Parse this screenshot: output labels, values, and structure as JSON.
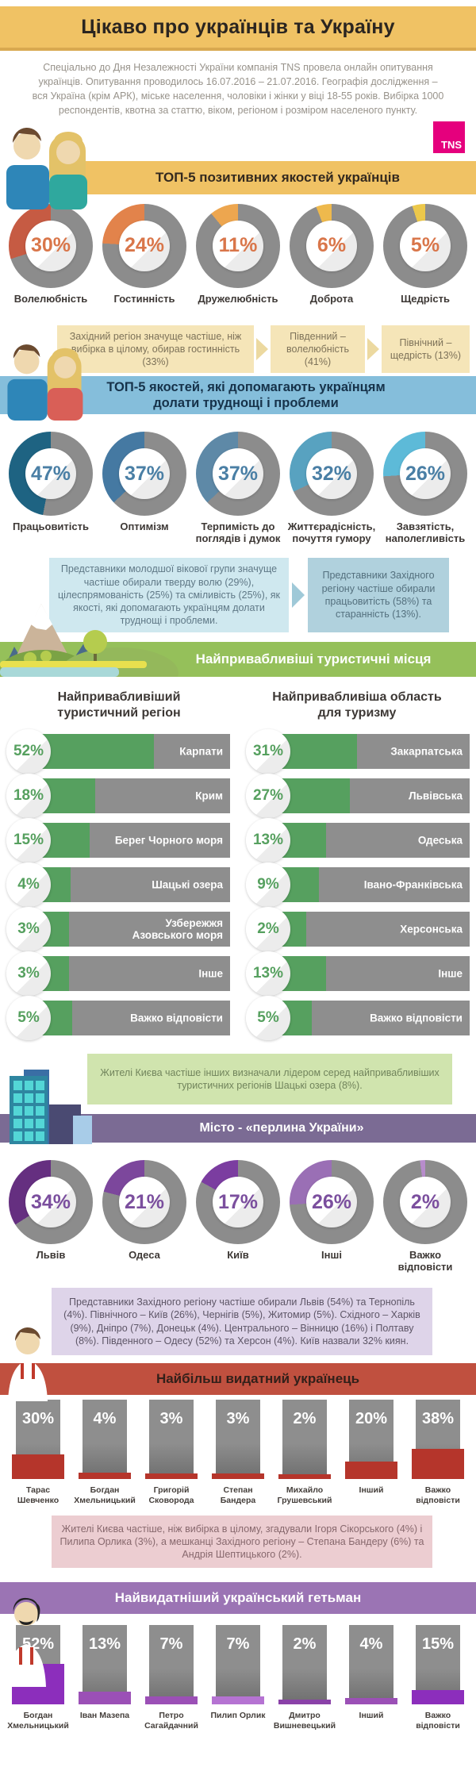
{
  "title": "Цікаво про українців та Україну",
  "logo": "TNS",
  "intro": "Спеціально до Дня Незалежності України компанія TNS провела онлайн опитування українців. Опитування проводилось 16.07.2016 – 21.07.2016. Географія дослідження – вся Україна (крім АРК), міське населення, чоловіки і жінки у віці 18-55 років. Вибірка 1000 респондентів, квотна за статтю, віком, регіоном і розміром населеного пункту.",
  "positive": {
    "header": "ТОП-5 позитивних якостей українців",
    "pct_color": "#d9764a",
    "items": [
      {
        "label": "Волелюбність",
        "pct": "30%",
        "value": 30,
        "color": "#c65b43"
      },
      {
        "label": "Гостинність",
        "pct": "24%",
        "value": 24,
        "color": "#e2834b"
      },
      {
        "label": "Дружелюбність",
        "pct": "11%",
        "value": 11,
        "color": "#eda64f"
      },
      {
        "label": "Доброта",
        "pct": "6%",
        "value": 6,
        "color": "#eeb94d"
      },
      {
        "label": "Щедрість",
        "pct": "5%",
        "value": 5,
        "color": "#ecc84b"
      }
    ],
    "callouts": [
      "Західний регіон значуще частіше, ніж вибірка в цілому, обирав гостинність (33%)",
      "Південний – волелюбність (41%)",
      "Північний – щедрість (13%)"
    ]
  },
  "coping": {
    "header": "ТОП-5 якостей, які допомагають українцям долати труднощі і проблеми",
    "pct_color": "#4a7fa5",
    "items": [
      {
        "label": "Працьовитість",
        "pct": "47%",
        "value": 47,
        "color": "#1e6382"
      },
      {
        "label": "Оптимізм",
        "pct": "37%",
        "value": 37,
        "color": "#4579a2"
      },
      {
        "label": "Терпимість до поглядів і думок",
        "pct": "37%",
        "value": 37,
        "color": "#5e89a7"
      },
      {
        "label": "Життєрадісність, почуття гумору",
        "pct": "32%",
        "value": 32,
        "color": "#58a2c0"
      },
      {
        "label": "Завзятість, наполегливість",
        "pct": "26%",
        "value": 26,
        "color": "#5dbad8"
      }
    ],
    "callout_left": "Представники молодшої вікової групи значуще частіше обирали тверду волю (29%), цілеспрямованість (25%) та сміливість (25%), як якості, які допомагають українцям долати труднощі і проблеми.",
    "callout_right": "Представники Західного регіону частіше обирали працьовитість (58%) та старанність (13%)."
  },
  "tourism": {
    "header": "Найпривабливіші туристичні місця",
    "left": {
      "title": "Найпривабливіший туристичний регіон",
      "items": [
        {
          "label": "Карпати",
          "pct": "52%",
          "value": 52
        },
        {
          "label": "Крим",
          "pct": "18%",
          "value": 18
        },
        {
          "label": "Берег Чорного моря",
          "pct": "15%",
          "value": 15
        },
        {
          "label": "Шацькі озера",
          "pct": "4%",
          "value": 4
        },
        {
          "label": "Узбережжя Азовського моря",
          "pct": "3%",
          "value": 3
        },
        {
          "label": "Інше",
          "pct": "3%",
          "value": 3
        },
        {
          "label": "Важко відповісти",
          "pct": "5%",
          "value": 5
        }
      ]
    },
    "right": {
      "title": "Найпривабливіша область для туризму",
      "items": [
        {
          "label": "Закарпатська",
          "pct": "31%",
          "value": 31
        },
        {
          "label": "Львівська",
          "pct": "27%",
          "value": 27
        },
        {
          "label": "Одеська",
          "pct": "13%",
          "value": 13
        },
        {
          "label": "Івано-Франківська",
          "pct": "9%",
          "value": 9
        },
        {
          "label": "Херсонська",
          "pct": "2%",
          "value": 2
        },
        {
          "label": "Інше",
          "pct": "13%",
          "value": 13
        },
        {
          "label": "Важко відповісти",
          "pct": "5%",
          "value": 5
        }
      ]
    },
    "callout": "Жителі Києва частіше інших визначали лідером серед найпривабливіших туристичних регіонів Шацькі озера (8%)."
  },
  "city": {
    "header": "Місто - «перлина України»",
    "pct_color": "#7b4f9e",
    "items": [
      {
        "label": "Львів",
        "pct": "34%",
        "value": 34,
        "color": "#652f80"
      },
      {
        "label": "Одеса",
        "pct": "21%",
        "value": 21,
        "color": "#7c479c"
      },
      {
        "label": "Київ",
        "pct": "17%",
        "value": 17,
        "color": "#7b3da0"
      },
      {
        "label": "Інші",
        "pct": "26%",
        "value": 26,
        "color": "#9a6fb5"
      },
      {
        "label": "Важко відповісти",
        "pct": "2%",
        "value": 2,
        "color": "#b78ccb"
      }
    ],
    "callout": "Представники Західного регіону частіше обирали Львів (54%) та Тернопіль (4%). Північного – Київ (26%), Чернігів (5%), Житомир (5%). Східного – Харків (9%), Дніпро (7%), Донецьк (4%). Центрального – Вінницю (16%) і Полтаву (8%). Південного – Одесу (52%) та Херсон (4%). Київ назвали 32% киян."
  },
  "outstanding": {
    "header": "Найбільш видатний українець",
    "pedestal_color": "#b5352b",
    "items": [
      {
        "label": "Тарас Шевченко",
        "pct": "30%",
        "value": 30
      },
      {
        "label": "Богдан Хмельницький",
        "pct": "4%",
        "value": 4
      },
      {
        "label": "Григорій Сковорода",
        "pct": "3%",
        "value": 3
      },
      {
        "label": "Степан Бандера",
        "pct": "3%",
        "value": 3
      },
      {
        "label": "Михайло Грушевський",
        "pct": "2%",
        "value": 2
      },
      {
        "label": "Інший",
        "pct": "20%",
        "value": 20
      },
      {
        "label": "Важко відповісти",
        "pct": "38%",
        "value": 38
      }
    ],
    "callout": "Жителі Києва частіше, ніж вибірка в цілому, згадували Ігоря Сікорського (4%) і Пилипа Орлика (3%), а мешканці Західного регіону – Степана Бандеру (6%) та Андрія Шептицького (2%)."
  },
  "hetman": {
    "header": "Найвидатніший український гетьман",
    "items": [
      {
        "label": "Богдан Хмельницький",
        "pct": "52%",
        "value": 52,
        "color": "#8c2ebc"
      },
      {
        "label": "Іван Мазепа",
        "pct": "13%",
        "value": 13,
        "color": "#9b50b6"
      },
      {
        "label": "Петро Сагайдачний",
        "pct": "7%",
        "value": 7,
        "color": "#9b50b6"
      },
      {
        "label": "Пилип Орлик",
        "pct": "7%",
        "value": 7,
        "color": "#b573d2"
      },
      {
        "label": "Дмитро Вишневецький",
        "pct": "2%",
        "value": 2,
        "color": "#8a41a8"
      },
      {
        "label": "Інший",
        "pct": "4%",
        "value": 4,
        "color": "#9b50b6"
      },
      {
        "label": "Важко відповісти",
        "pct": "15%",
        "value": 15,
        "color": "#8c2ebc"
      }
    ]
  },
  "chart_data": [
    {
      "type": "pie",
      "subtype": "donut-set",
      "title": "ТОП-5 позитивних якостей українців",
      "categories": [
        "Волелюбність",
        "Гостинність",
        "Дружелюбність",
        "Доброта",
        "Щедрість"
      ],
      "values": [
        30,
        24,
        11,
        6,
        5
      ],
      "unit": "%"
    },
    {
      "type": "pie",
      "subtype": "donut-set",
      "title": "ТОП-5 якостей, які допомагають українцям долати труднощі і проблеми",
      "categories": [
        "Працьовитість",
        "Оптимізм",
        "Терпимість до поглядів і думок",
        "Життєрадісність, почуття гумору",
        "Завзятість, наполегливість"
      ],
      "values": [
        47,
        37,
        37,
        32,
        26
      ],
      "unit": "%"
    },
    {
      "type": "bar",
      "title": "Найпривабливіший туристичний регіон",
      "categories": [
        "Карпати",
        "Крим",
        "Берег Чорного моря",
        "Шацькі озера",
        "Узбережжя Азовського моря",
        "Інше",
        "Важко відповісти"
      ],
      "values": [
        52,
        18,
        15,
        4,
        3,
        3,
        5
      ],
      "unit": "%"
    },
    {
      "type": "bar",
      "title": "Найпривабливіша область для туризму",
      "categories": [
        "Закарпатська",
        "Львівська",
        "Одеська",
        "Івано-Франківська",
        "Херсонська",
        "Інше",
        "Важко відповісти"
      ],
      "values": [
        31,
        27,
        13,
        9,
        2,
        13,
        5
      ],
      "unit": "%"
    },
    {
      "type": "pie",
      "subtype": "donut-set",
      "title": "Місто - «перлина України»",
      "categories": [
        "Львів",
        "Одеса",
        "Київ",
        "Інші",
        "Важко відповісти"
      ],
      "values": [
        34,
        21,
        17,
        26,
        2
      ],
      "unit": "%"
    },
    {
      "type": "bar",
      "title": "Найбільш видатний українець",
      "categories": [
        "Тарас Шевченко",
        "Богдан Хмельницький",
        "Григорій Сковорода",
        "Степан Бандера",
        "Михайло Грушевський",
        "Інший",
        "Важко відповісти"
      ],
      "values": [
        30,
        4,
        3,
        3,
        2,
        20,
        38
      ],
      "unit": "%"
    },
    {
      "type": "bar",
      "title": "Найвидатніший український гетьман",
      "categories": [
        "Богдан Хмельницький",
        "Іван Мазепа",
        "Петро Сагайдачний",
        "Пилип Орлик",
        "Дмитро Вишневецький",
        "Інший",
        "Важко відповісти"
      ],
      "values": [
        52,
        13,
        7,
        7,
        2,
        4,
        15
      ],
      "unit": "%"
    }
  ]
}
